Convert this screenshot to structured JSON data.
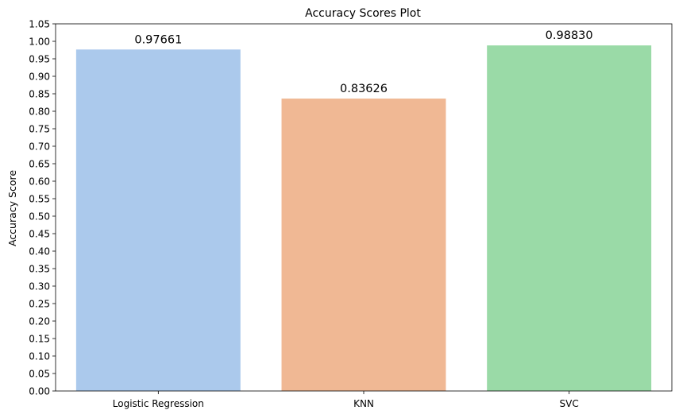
{
  "chart_data": {
    "type": "bar",
    "title": "Accuracy Scores Plot",
    "xlabel": "",
    "ylabel": "Accuracy Score",
    "categories": [
      "Logistic Regression",
      "KNN",
      "SVC"
    ],
    "values": [
      0.97661,
      0.83626,
      0.9883
    ],
    "value_labels": [
      "0.97661",
      "0.83626",
      "0.98830"
    ],
    "colors": [
      "#abc9ec",
      "#f0b894",
      "#9adaa7"
    ],
    "ylim": [
      0,
      1.05
    ],
    "yticks": [
      0.0,
      0.05,
      0.1,
      0.15,
      0.2,
      0.25,
      0.3,
      0.35,
      0.4,
      0.45,
      0.5,
      0.55,
      0.6,
      0.65,
      0.7,
      0.75,
      0.8,
      0.85,
      0.9,
      0.95,
      1.0,
      1.05
    ],
    "ytick_labels": [
      "0.00",
      "0.05",
      "0.10",
      "0.15",
      "0.20",
      "0.25",
      "0.30",
      "0.35",
      "0.40",
      "0.45",
      "0.50",
      "0.55",
      "0.60",
      "0.65",
      "0.70",
      "0.75",
      "0.80",
      "0.85",
      "0.90",
      "0.95",
      "1.00",
      "1.05"
    ],
    "grid": false,
    "legend": "none"
  }
}
